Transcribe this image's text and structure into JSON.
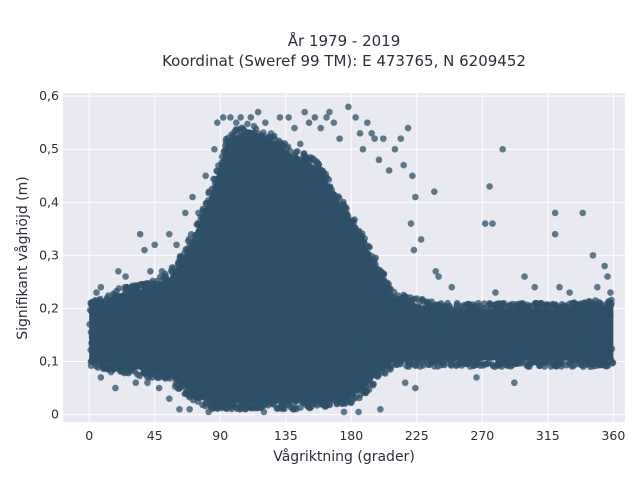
{
  "chart_data": {
    "type": "scatter",
    "title_lines": [
      "År 1979 - 2019",
      "Koordinat (Sweref 99 TM): E 473765, N 6209452"
    ],
    "xlabel": "Vågriktning (grader)",
    "ylabel": "Signifikant våghöjd (m)",
    "xlim": [
      -18,
      368
    ],
    "ylim": [
      -0.014,
      0.606
    ],
    "x_ticks": [
      0,
      45,
      90,
      135,
      180,
      225,
      270,
      315,
      360
    ],
    "x_tick_labels": [
      "0",
      "45",
      "90",
      "135",
      "180",
      "225",
      "270",
      "315",
      "360"
    ],
    "y_ticks": [
      0,
      0.1,
      0.2,
      0.3,
      0.4,
      0.5,
      0.6
    ],
    "y_tick_labels": [
      "0",
      "0,1",
      "0,2",
      "0,3",
      "0,4",
      "0,5",
      "0,6"
    ],
    "grid": true,
    "marker_color": "#2e5068",
    "plot_background": "#e9e9f1",
    "envelope": {
      "x": [
        0,
        20,
        40,
        55,
        65,
        75,
        85,
        95,
        110,
        125,
        140,
        150,
        160,
        170,
        180,
        190,
        200,
        210,
        225,
        240,
        270,
        300,
        330,
        360
      ],
      "y_upper": [
        0.21,
        0.24,
        0.25,
        0.27,
        0.31,
        0.37,
        0.44,
        0.53,
        0.55,
        0.53,
        0.5,
        0.49,
        0.47,
        0.42,
        0.38,
        0.33,
        0.28,
        0.23,
        0.22,
        0.21,
        0.21,
        0.21,
        0.21,
        0.22
      ],
      "y_lower": [
        0.09,
        0.08,
        0.07,
        0.06,
        0.04,
        0.02,
        0.01,
        0.01,
        0.01,
        0.01,
        0.01,
        0.01,
        0.01,
        0.02,
        0.02,
        0.04,
        0.07,
        0.09,
        0.09,
        0.09,
        0.09,
        0.09,
        0.09,
        0.09
      ]
    },
    "scatter_points": [
      {
        "x": 1,
        "y": 0.21
      },
      {
        "x": 3,
        "y": 0.17
      },
      {
        "x": 5,
        "y": 0.23
      },
      {
        "x": 8,
        "y": 0.24
      },
      {
        "x": 12,
        "y": 0.2
      },
      {
        "x": 15,
        "y": 0.08
      },
      {
        "x": 20,
        "y": 0.27
      },
      {
        "x": 25,
        "y": 0.26
      },
      {
        "x": 29,
        "y": 0.24
      },
      {
        "x": 32,
        "y": 0.06
      },
      {
        "x": 35,
        "y": 0.34
      },
      {
        "x": 38,
        "y": 0.31
      },
      {
        "x": 42,
        "y": 0.27
      },
      {
        "x": 45,
        "y": 0.32
      },
      {
        "x": 48,
        "y": 0.05
      },
      {
        "x": 50,
        "y": 0.27
      },
      {
        "x": 55,
        "y": 0.34
      },
      {
        "x": 60,
        "y": 0.32
      },
      {
        "x": 62,
        "y": 0.01
      },
      {
        "x": 66,
        "y": 0.38
      },
      {
        "x": 69,
        "y": 0.01
      },
      {
        "x": 71,
        "y": 0.41
      },
      {
        "x": 75,
        "y": 0.38
      },
      {
        "x": 80,
        "y": 0.45
      },
      {
        "x": 82,
        "y": 0.005
      },
      {
        "x": 86,
        "y": 0.5
      },
      {
        "x": 88,
        "y": 0.55
      },
      {
        "x": 92,
        "y": 0.56
      },
      {
        "x": 97,
        "y": 0.56
      },
      {
        "x": 101,
        "y": 0.55
      },
      {
        "x": 104,
        "y": 0.56
      },
      {
        "x": 108,
        "y": 0.53
      },
      {
        "x": 111,
        "y": 0.56
      },
      {
        "x": 116,
        "y": 0.57
      },
      {
        "x": 121,
        "y": 0.55
      },
      {
        "x": 126,
        "y": 0.5
      },
      {
        "x": 131,
        "y": 0.56
      },
      {
        "x": 137,
        "y": 0.56
      },
      {
        "x": 141,
        "y": 0.54
      },
      {
        "x": 145,
        "y": 0.51
      },
      {
        "x": 148,
        "y": 0.57
      },
      {
        "x": 151,
        "y": 0.55
      },
      {
        "x": 155,
        "y": 0.56
      },
      {
        "x": 159,
        "y": 0.54
      },
      {
        "x": 163,
        "y": 0.56
      },
      {
        "x": 165,
        "y": 0.57
      },
      {
        "x": 168,
        "y": 0.55
      },
      {
        "x": 172,
        "y": 0.52
      },
      {
        "x": 178,
        "y": 0.58
      },
      {
        "x": 183,
        "y": 0.56
      },
      {
        "x": 186,
        "y": 0.53
      },
      {
        "x": 188,
        "y": 0.5
      },
      {
        "x": 191,
        "y": 0.55
      },
      {
        "x": 194,
        "y": 0.53
      },
      {
        "x": 196,
        "y": 0.52
      },
      {
        "x": 199,
        "y": 0.48
      },
      {
        "x": 202,
        "y": 0.52
      },
      {
        "x": 206,
        "y": 0.46
      },
      {
        "x": 210,
        "y": 0.5
      },
      {
        "x": 214,
        "y": 0.52
      },
      {
        "x": 216,
        "y": 0.47
      },
      {
        "x": 219,
        "y": 0.54
      },
      {
        "x": 222,
        "y": 0.45
      },
      {
        "x": 224,
        "y": 0.41
      },
      {
        "x": 221,
        "y": 0.36
      },
      {
        "x": 223,
        "y": 0.31
      },
      {
        "x": 228,
        "y": 0.33
      },
      {
        "x": 237,
        "y": 0.42
      },
      {
        "x": 238,
        "y": 0.27
      },
      {
        "x": 240,
        "y": 0.26
      },
      {
        "x": 249,
        "y": 0.24
      },
      {
        "x": 275,
        "y": 0.43
      },
      {
        "x": 272,
        "y": 0.36
      },
      {
        "x": 277,
        "y": 0.36
      },
      {
        "x": 279,
        "y": 0.23
      },
      {
        "x": 284,
        "y": 0.5
      },
      {
        "x": 299,
        "y": 0.26
      },
      {
        "x": 306,
        "y": 0.24
      },
      {
        "x": 320,
        "y": 0.38
      },
      {
        "x": 320,
        "y": 0.34
      },
      {
        "x": 323,
        "y": 0.24
      },
      {
        "x": 330,
        "y": 0.23
      },
      {
        "x": 339,
        "y": 0.38
      },
      {
        "x": 346,
        "y": 0.3
      },
      {
        "x": 349,
        "y": 0.24
      },
      {
        "x": 354,
        "y": 0.28
      },
      {
        "x": 356,
        "y": 0.26
      },
      {
        "x": 358,
        "y": 0.23
      },
      {
        "x": 292,
        "y": 0.06
      },
      {
        "x": 266,
        "y": 0.07
      },
      {
        "x": 217,
        "y": 0.06
      },
      {
        "x": 224,
        "y": 0.05
      },
      {
        "x": 18,
        "y": 0.05
      },
      {
        "x": 8,
        "y": 0.07
      },
      {
        "x": 40,
        "y": 0.06
      },
      {
        "x": 55,
        "y": 0.03
      },
      {
        "x": 200,
        "y": 0.01
      },
      {
        "x": 185,
        "y": 0.005
      },
      {
        "x": 175,
        "y": 0.005
      },
      {
        "x": 120,
        "y": 0.005
      }
    ]
  }
}
